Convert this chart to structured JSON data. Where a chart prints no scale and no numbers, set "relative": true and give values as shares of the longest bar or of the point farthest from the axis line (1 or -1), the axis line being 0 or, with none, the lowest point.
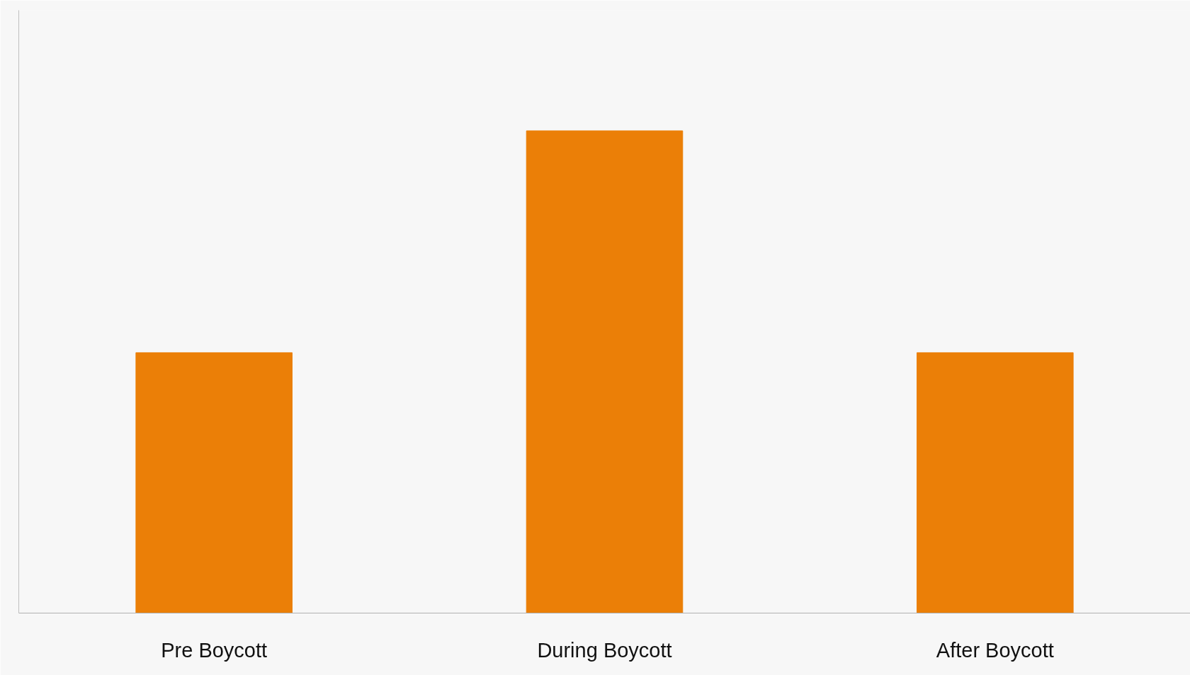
{
  "chart_data": {
    "type": "bar",
    "relative": true,
    "categories": [
      "Pre Boycott",
      "During Boycott",
      "After Boycott"
    ],
    "values": [
      0.54,
      1,
      0.54
    ],
    "color": "#eb7f07",
    "grid": false
  }
}
